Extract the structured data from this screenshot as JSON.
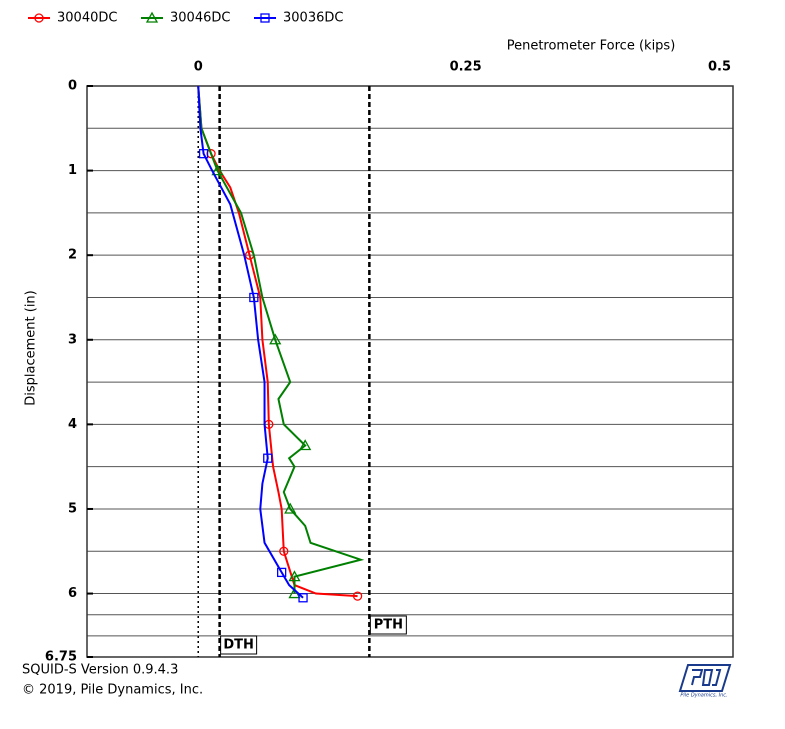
{
  "chart_data": {
    "type": "line",
    "x_label": "Penetrometer Force (kips)",
    "y_label": "Displacement (in)",
    "xlim": [
      -0.104,
      0.5
    ],
    "xticks": [
      0,
      0.25,
      0.5
    ],
    "ylim": [
      0,
      6.75
    ],
    "yticks": [
      0,
      1,
      2,
      3,
      4,
      5,
      6,
      6.75
    ],
    "ygrid": [
      0.5,
      1,
      1.5,
      2,
      2.5,
      3,
      3.5,
      4,
      4.5,
      5,
      5.5,
      6,
      6.25,
      6.5
    ],
    "y_inverted": true,
    "thresholds": [
      {
        "label": "DTH",
        "value": 0.02
      },
      {
        "label": "PTH",
        "value": 0.16
      }
    ],
    "series": [
      {
        "name": "30040DC",
        "color": "#ff0000",
        "marker": "circle",
        "x": [
          0,
          0.003,
          0.012,
          0.02,
          0.03,
          0.038,
          0.048,
          0.058,
          0.06,
          0.065,
          0.066,
          0.07,
          0.075,
          0.078,
          0.08,
          0.09,
          0.11,
          0.149
        ],
        "y": [
          0,
          0.5,
          0.8,
          1.0,
          1.2,
          1.5,
          2.0,
          2.5,
          3.0,
          3.5,
          4.0,
          4.5,
          4.8,
          5.0,
          5.5,
          5.9,
          6.0,
          6.03
        ]
      },
      {
        "name": "30046DC",
        "color": "#008000",
        "marker": "triangle",
        "x": [
          0,
          0.003,
          0.018,
          0.04,
          0.052,
          0.06,
          0.072,
          0.086,
          0.075,
          0.08,
          0.1,
          0.085,
          0.09,
          0.08,
          0.086,
          0.1,
          0.105,
          0.152,
          0.09,
          0.09
        ],
        "y": [
          0,
          0.5,
          1.0,
          1.5,
          2.0,
          2.5,
          3.0,
          3.5,
          3.7,
          4.0,
          4.25,
          4.4,
          4.5,
          4.8,
          5.0,
          5.2,
          5.4,
          5.6,
          5.8,
          6.0
        ]
      },
      {
        "name": "30036DC",
        "color": "#0000ff",
        "marker": "square",
        "x": [
          0,
          0.002,
          0.005,
          0.013,
          0.03,
          0.043,
          0.052,
          0.056,
          0.062,
          0.062,
          0.065,
          0.06,
          0.058,
          0.062,
          0.078,
          0.085,
          0.098
        ],
        "y": [
          0,
          0.5,
          0.8,
          1.0,
          1.4,
          2.0,
          2.5,
          3.0,
          3.5,
          4.0,
          4.4,
          4.7,
          5.0,
          5.4,
          5.75,
          5.9,
          6.05
        ]
      }
    ],
    "footer": [
      "SQUID-S Version 0.9.4.3",
      "© 2019, Pile Dynamics, Inc."
    ]
  }
}
